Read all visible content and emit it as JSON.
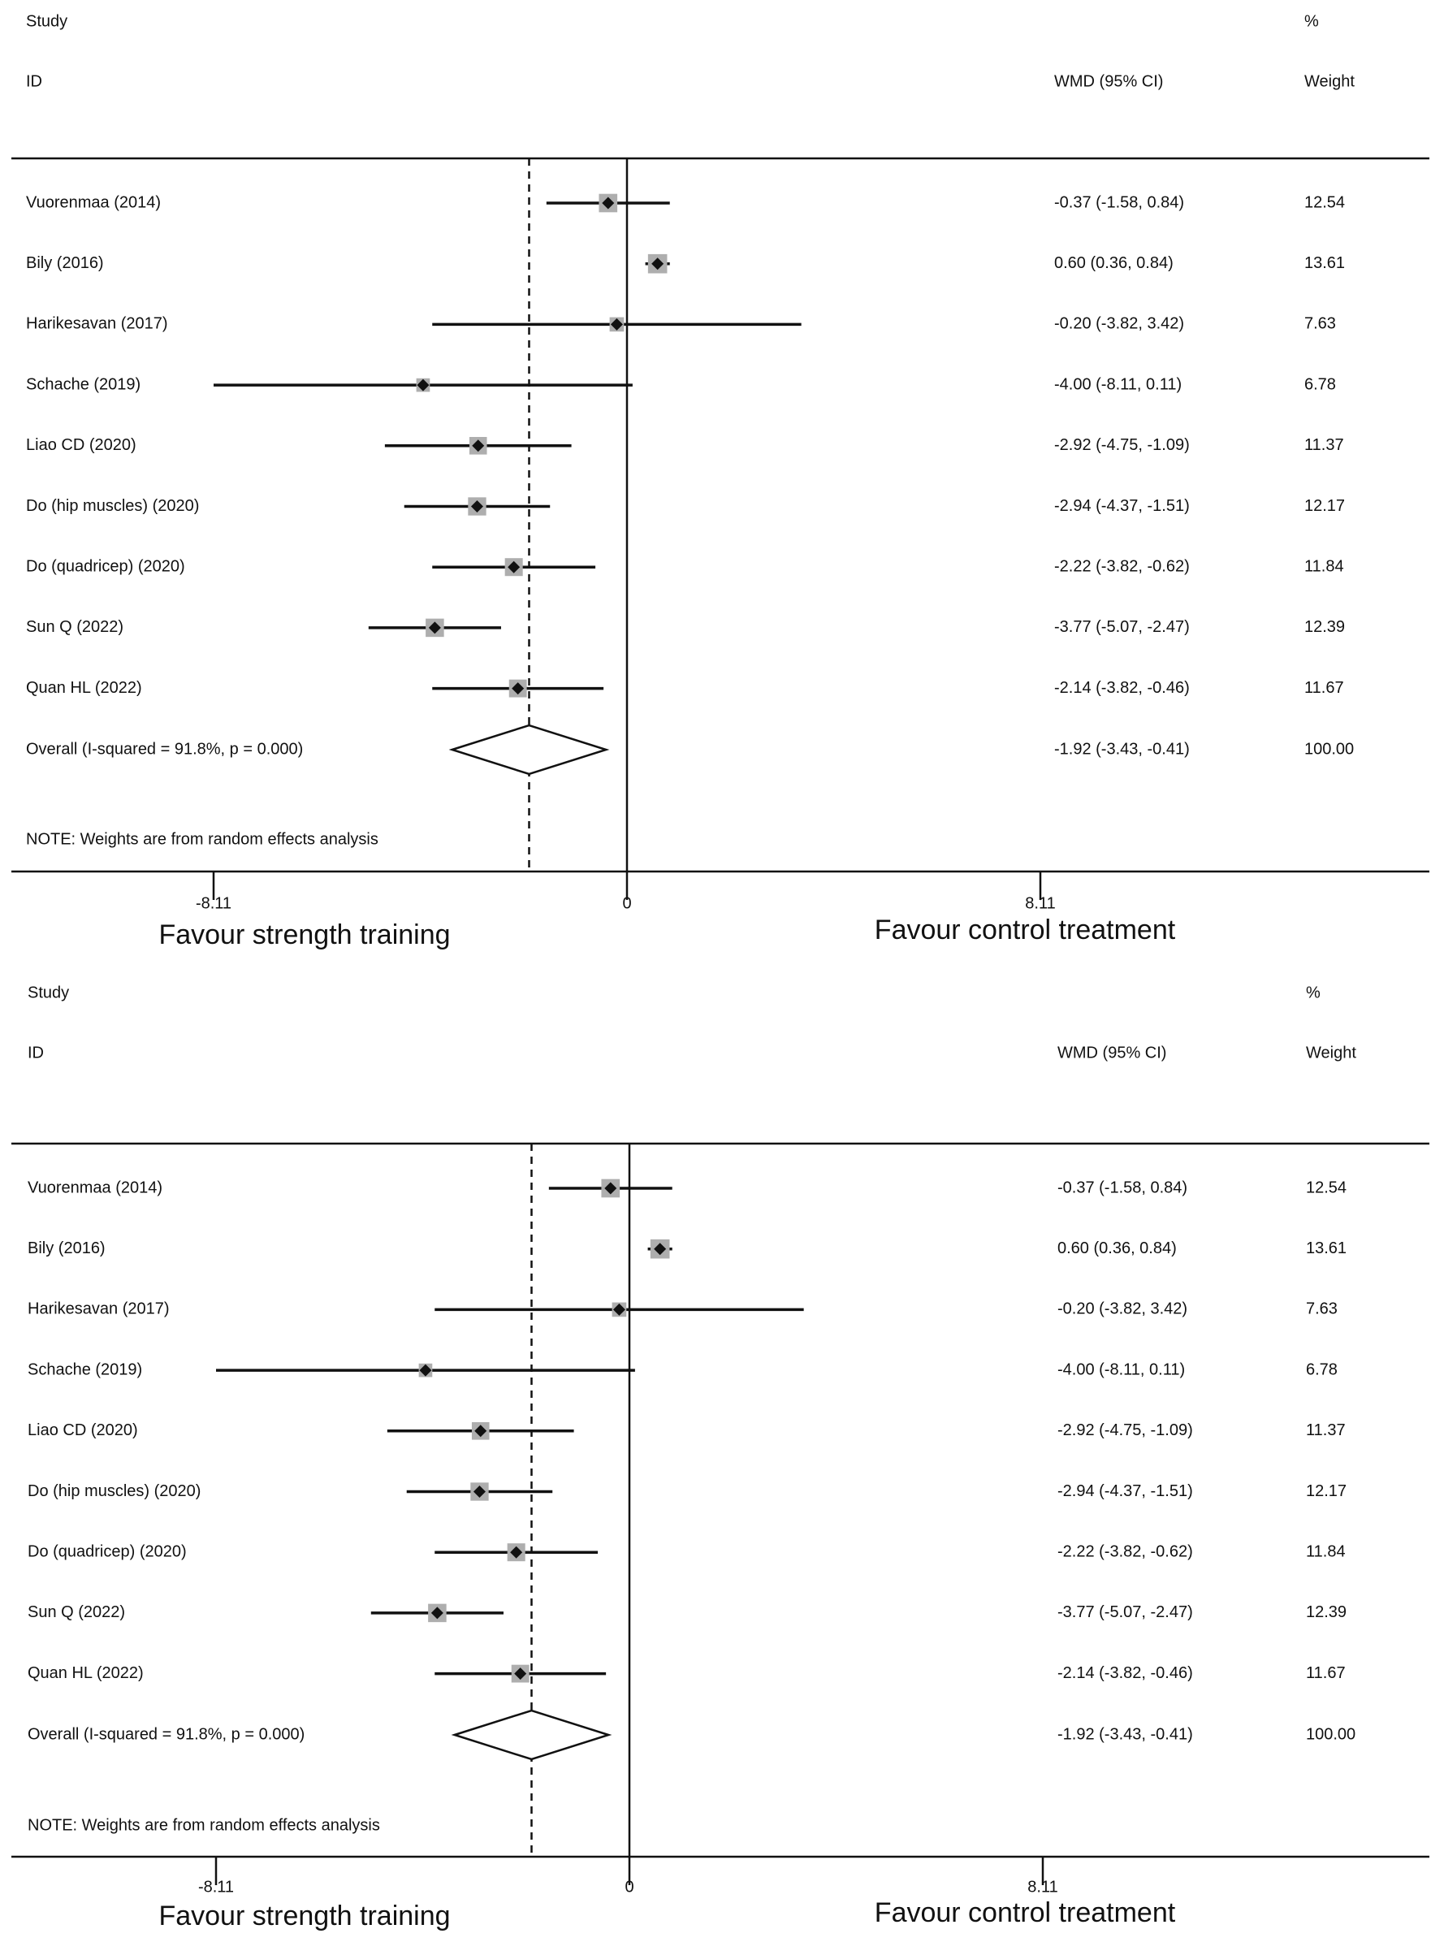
{
  "chart_data": [
    {
      "type": "forest",
      "headers": {
        "study_top": "Study",
        "study_bottom": "ID",
        "effect_top": "",
        "effect_bottom": "WMD (95% CI)",
        "weight_top": "%",
        "weight_bottom": "Weight"
      },
      "studies": [
        {
          "label": "Vuorenmaa (2014)",
          "wmd": -0.37,
          "lower": -1.58,
          "upper": 0.84,
          "weight": 12.54,
          "ci_text": "-0.37 (-1.58, 0.84)",
          "weight_text": "12.54"
        },
        {
          "label": "Bily (2016)",
          "wmd": 0.6,
          "lower": 0.36,
          "upper": 0.84,
          "weight": 13.61,
          "ci_text": "0.60 (0.36, 0.84)",
          "weight_text": "13.61"
        },
        {
          "label": "Harikesavan (2017)",
          "wmd": -0.2,
          "lower": -3.82,
          "upper": 3.42,
          "weight": 7.63,
          "ci_text": "-0.20 (-3.82, 3.42)",
          "weight_text": "7.63"
        },
        {
          "label": "Schache (2019)",
          "wmd": -4.0,
          "lower": -8.11,
          "upper": 0.11,
          "weight": 6.78,
          "ci_text": "-4.00 (-8.11, 0.11)",
          "weight_text": "6.78"
        },
        {
          "label": "Liao CD (2020)",
          "wmd": -2.92,
          "lower": -4.75,
          "upper": -1.09,
          "weight": 11.37,
          "ci_text": "-2.92 (-4.75, -1.09)",
          "weight_text": "11.37"
        },
        {
          "label": "Do (hip muscles) (2020)",
          "wmd": -2.94,
          "lower": -4.37,
          "upper": -1.51,
          "weight": 12.17,
          "ci_text": "-2.94 (-4.37, -1.51)",
          "weight_text": "12.17"
        },
        {
          "label": "Do (quadricep) (2020)",
          "wmd": -2.22,
          "lower": -3.82,
          "upper": -0.62,
          "weight": 11.84,
          "ci_text": "-2.22 (-3.82, -0.62)",
          "weight_text": "11.84"
        },
        {
          "label": "Sun Q (2022)",
          "wmd": -3.77,
          "lower": -5.07,
          "upper": -2.47,
          "weight": 12.39,
          "ci_text": "-3.77 (-5.07, -2.47)",
          "weight_text": "12.39"
        },
        {
          "label": "Quan HL (2022)",
          "wmd": -2.14,
          "lower": -3.82,
          "upper": -0.46,
          "weight": 11.67,
          "ci_text": "-2.14 (-3.82, -0.46)",
          "weight_text": "11.67"
        }
      ],
      "overall": {
        "label": "Overall  (I-squared = 91.8%, p = 0.000)",
        "wmd": -1.92,
        "lower": -3.43,
        "upper": -0.41,
        "weight": 100.0,
        "ci_text": "-1.92 (-3.43, -0.41)",
        "weight_text": "100.00"
      },
      "note": "NOTE: Weights are from random effects analysis",
      "x_axis": {
        "range": [
          -8.11,
          8.11
        ],
        "ticks": [
          -8.11,
          0,
          8.11
        ],
        "tick_labels": [
          "-8.11",
          "0",
          "8.11"
        ],
        "left_label": "Favour strength training",
        "right_label": "Favour control treatment"
      }
    },
    {
      "type": "forest",
      "headers": {
        "study_top": "Study",
        "study_bottom": "ID",
        "effect_top": "",
        "effect_bottom": "WMD (95% CI)",
        "weight_top": "%",
        "weight_bottom": "Weight"
      },
      "studies": [
        {
          "label": "Vuorenmaa (2014)",
          "wmd": -0.37,
          "lower": -1.58,
          "upper": 0.84,
          "weight": 12.54,
          "ci_text": "-0.37 (-1.58, 0.84)",
          "weight_text": "12.54"
        },
        {
          "label": "Bily (2016)",
          "wmd": 0.6,
          "lower": 0.36,
          "upper": 0.84,
          "weight": 13.61,
          "ci_text": "0.60 (0.36, 0.84)",
          "weight_text": "13.61"
        },
        {
          "label": "Harikesavan (2017)",
          "wmd": -0.2,
          "lower": -3.82,
          "upper": 3.42,
          "weight": 7.63,
          "ci_text": "-0.20 (-3.82, 3.42)",
          "weight_text": "7.63"
        },
        {
          "label": "Schache (2019)",
          "wmd": -4.0,
          "lower": -8.11,
          "upper": 0.11,
          "weight": 6.78,
          "ci_text": "-4.00 (-8.11, 0.11)",
          "weight_text": "6.78"
        },
        {
          "label": "Liao CD (2020)",
          "wmd": -2.92,
          "lower": -4.75,
          "upper": -1.09,
          "weight": 11.37,
          "ci_text": "-2.92 (-4.75, -1.09)",
          "weight_text": "11.37"
        },
        {
          "label": "Do (hip muscles) (2020)",
          "wmd": -2.94,
          "lower": -4.37,
          "upper": -1.51,
          "weight": 12.17,
          "ci_text": "-2.94 (-4.37, -1.51)",
          "weight_text": "12.17"
        },
        {
          "label": "Do (quadricep) (2020)",
          "wmd": -2.22,
          "lower": -3.82,
          "upper": -0.62,
          "weight": 11.84,
          "ci_text": "-2.22 (-3.82, -0.62)",
          "weight_text": "11.84"
        },
        {
          "label": "Sun Q (2022)",
          "wmd": -3.77,
          "lower": -5.07,
          "upper": -2.47,
          "weight": 12.39,
          "ci_text": "-3.77 (-5.07, -2.47)",
          "weight_text": "12.39"
        },
        {
          "label": "Quan HL (2022)",
          "wmd": -2.14,
          "lower": -3.82,
          "upper": -0.46,
          "weight": 11.67,
          "ci_text": "-2.14 (-3.82, -0.46)",
          "weight_text": "11.67"
        }
      ],
      "overall": {
        "label": "Overall  (I-squared = 91.8%, p = 0.000)",
        "wmd": -1.92,
        "lower": -3.43,
        "upper": -0.41,
        "weight": 100.0,
        "ci_text": "-1.92 (-3.43, -0.41)",
        "weight_text": "100.00"
      },
      "note": "NOTE: Weights are from random effects analysis",
      "x_axis": {
        "range": [
          -8.11,
          8.11
        ],
        "ticks": [
          -8.11,
          0,
          8.11
        ],
        "tick_labels": [
          "-8.11",
          "0",
          "8.11"
        ],
        "left_label": "Favour strength training",
        "right_label": "Favour control treatment"
      }
    }
  ]
}
